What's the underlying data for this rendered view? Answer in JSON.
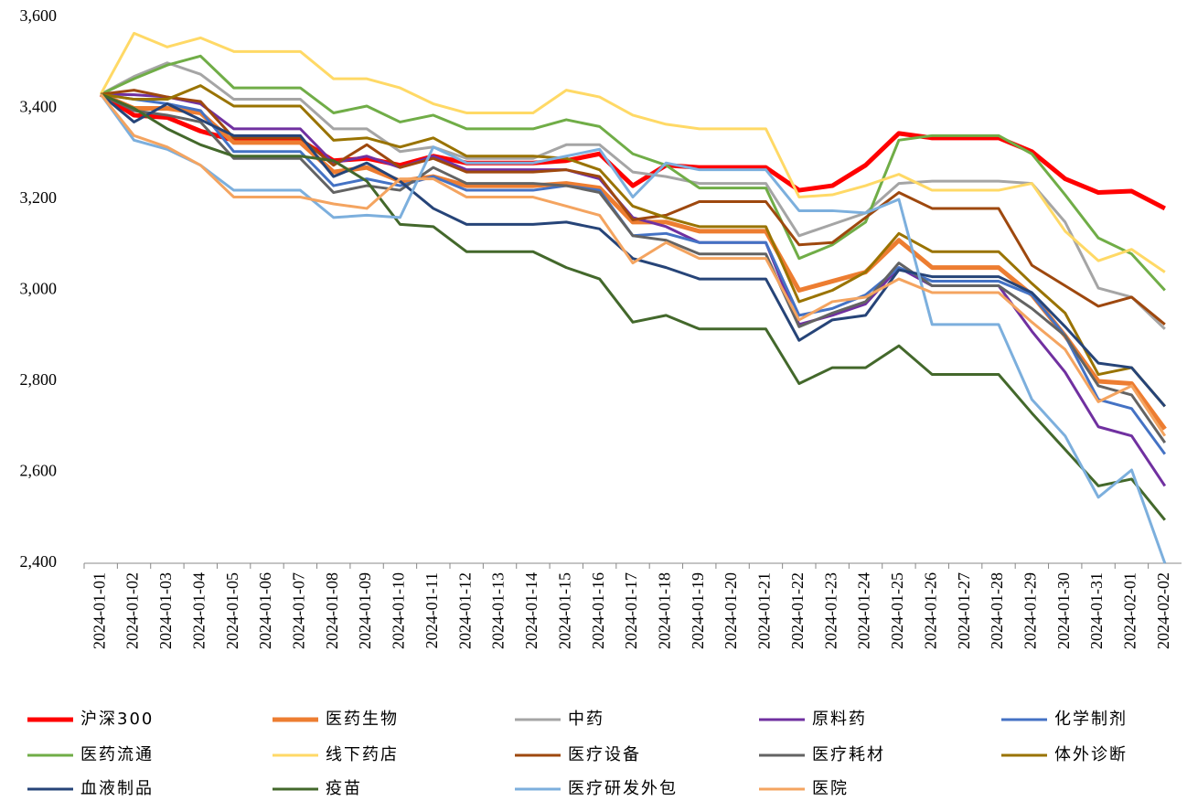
{
  "chart_data": {
    "type": "line",
    "categories": [
      "2024-01-01",
      "2024-01-02",
      "2024-01-03",
      "2024-01-04",
      "2024-01-05",
      "2024-01-06",
      "2024-01-07",
      "2024-01-08",
      "2024-01-09",
      "2024-01-10",
      "2024-01-11",
      "2024-01-12",
      "2024-01-13",
      "2024-01-14",
      "2024-01-15",
      "2024-01-16",
      "2024-01-17",
      "2024-01-18",
      "2024-01-19",
      "2024-01-20",
      "2024-01-21",
      "2024-01-22",
      "2024-01-23",
      "2024-01-24",
      "2024-01-25",
      "2024-01-26",
      "2024-01-27",
      "2024-01-28",
      "2024-01-29",
      "2024-01-30",
      "2024-01-31",
      "2024-02-01",
      "2024-02-02"
    ],
    "ylim": [
      2400,
      3600
    ],
    "yticks": [
      {
        "value": 2400,
        "label": "2,400"
      },
      {
        "value": 2600,
        "label": "2,600"
      },
      {
        "value": 2800,
        "label": "2,800"
      },
      {
        "value": 3000,
        "label": "3,000"
      },
      {
        "value": 3200,
        "label": "3,200"
      },
      {
        "value": 3400,
        "label": "3,400"
      },
      {
        "value": 3600,
        "label": "3,600"
      }
    ],
    "grid": false,
    "legend": "bottom",
    "series": [
      {
        "name": "沪深300",
        "color": "#ff0000",
        "values": [
          3431,
          3385,
          3380,
          3350,
          3330,
          3330,
          3330,
          3285,
          3290,
          3275,
          3295,
          3280,
          3280,
          3280,
          3285,
          3300,
          3230,
          3275,
          3270,
          3270,
          3270,
          3220,
          3230,
          3275,
          3345,
          3335,
          3335,
          3335,
          3305,
          3245,
          3215,
          3218,
          3180
        ]
      },
      {
        "name": "医药生物",
        "color": "#ed7d31",
        "values": [
          3431,
          3400,
          3400,
          3390,
          3325,
          3325,
          3325,
          3260,
          3270,
          3240,
          3250,
          3230,
          3230,
          3230,
          3235,
          3225,
          3150,
          3150,
          3130,
          3130,
          3130,
          3000,
          3020,
          3040,
          3110,
          3050,
          3050,
          3050,
          2990,
          2900,
          2800,
          2795,
          2695
        ]
      },
      {
        "name": "中药",
        "color": "#a5a5a5",
        "values": [
          3431,
          3470,
          3500,
          3475,
          3420,
          3420,
          3420,
          3355,
          3355,
          3305,
          3315,
          3290,
          3290,
          3290,
          3320,
          3320,
          3260,
          3250,
          3235,
          3235,
          3235,
          3120,
          3145,
          3170,
          3235,
          3240,
          3240,
          3240,
          3235,
          3150,
          3005,
          2985,
          2915
        ]
      },
      {
        "name": "原料药",
        "color": "#7030a0",
        "values": [
          3431,
          3430,
          3425,
          3410,
          3355,
          3355,
          3355,
          3280,
          3295,
          3270,
          3295,
          3265,
          3265,
          3265,
          3265,
          3245,
          3160,
          3140,
          3105,
          3105,
          3105,
          2925,
          2945,
          2970,
          3050,
          3010,
          3010,
          3010,
          2910,
          2820,
          2700,
          2680,
          2570
        ]
      },
      {
        "name": "化学制剂",
        "color": "#4472c4",
        "values": [
          3431,
          3420,
          3410,
          3395,
          3305,
          3305,
          3305,
          3230,
          3245,
          3230,
          3250,
          3220,
          3220,
          3220,
          3230,
          3220,
          3120,
          3125,
          3105,
          3105,
          3105,
          2945,
          2960,
          2990,
          3050,
          3020,
          3020,
          3020,
          2990,
          2900,
          2760,
          2740,
          2640
        ]
      },
      {
        "name": "医药流通",
        "color": "#70ad47",
        "values": [
          3431,
          3465,
          3495,
          3515,
          3445,
          3445,
          3445,
          3390,
          3405,
          3370,
          3385,
          3355,
          3355,
          3355,
          3375,
          3360,
          3300,
          3275,
          3225,
          3225,
          3225,
          3070,
          3100,
          3150,
          3330,
          3340,
          3340,
          3340,
          3300,
          3210,
          3115,
          3080,
          3000
        ]
      },
      {
        "name": "线下药店",
        "color": "#ffd966",
        "values": [
          3431,
          3565,
          3535,
          3555,
          3525,
          3525,
          3525,
          3465,
          3465,
          3445,
          3410,
          3390,
          3390,
          3390,
          3440,
          3425,
          3385,
          3365,
          3355,
          3355,
          3355,
          3205,
          3210,
          3230,
          3255,
          3220,
          3220,
          3220,
          3235,
          3130,
          3065,
          3090,
          3040
        ]
      },
      {
        "name": "医疗设备",
        "color": "#9e480e",
        "values": [
          3431,
          3440,
          3425,
          3415,
          3335,
          3335,
          3335,
          3275,
          3320,
          3270,
          3290,
          3260,
          3260,
          3260,
          3265,
          3250,
          3155,
          3165,
          3195,
          3195,
          3195,
          3100,
          3105,
          3160,
          3215,
          3180,
          3180,
          3180,
          3055,
          3010,
          2965,
          2985,
          2925
        ]
      },
      {
        "name": "医疗耗材",
        "color": "#636363",
        "values": [
          3431,
          3395,
          3385,
          3370,
          3290,
          3290,
          3290,
          3215,
          3230,
          3220,
          3270,
          3235,
          3235,
          3235,
          3230,
          3215,
          3120,
          3110,
          3080,
          3080,
          3080,
          2920,
          2950,
          2975,
          3060,
          3010,
          3010,
          3010,
          2960,
          2900,
          2790,
          2770,
          2665
        ]
      },
      {
        "name": "体外诊断",
        "color": "#997300",
        "values": [
          3431,
          3420,
          3420,
          3450,
          3405,
          3405,
          3405,
          3330,
          3335,
          3315,
          3335,
          3295,
          3295,
          3295,
          3290,
          3265,
          3185,
          3160,
          3140,
          3140,
          3140,
          2975,
          3000,
          3040,
          3125,
          3085,
          3085,
          3085,
          3015,
          2950,
          2815,
          2830,
          2745
        ]
      },
      {
        "name": "血液制品",
        "color": "#264478",
        "values": [
          3431,
          3370,
          3410,
          3375,
          3340,
          3340,
          3340,
          3250,
          3280,
          3240,
          3180,
          3145,
          3145,
          3145,
          3150,
          3135,
          3070,
          3050,
          3025,
          3025,
          3025,
          2890,
          2935,
          2945,
          3045,
          3030,
          3030,
          3030,
          2995,
          2920,
          2840,
          2830,
          2745
        ]
      },
      {
        "name": "疫苗",
        "color": "#43682b",
        "values": [
          3431,
          3400,
          3355,
          3320,
          3295,
          3295,
          3295,
          3285,
          3240,
          3145,
          3140,
          3085,
          3085,
          3085,
          3050,
          3025,
          2930,
          2945,
          2915,
          2915,
          2915,
          2795,
          2830,
          2830,
          2878,
          2815,
          2815,
          2815,
          2730,
          2650,
          2570,
          2585,
          2495
        ]
      },
      {
        "name": "医疗研发外包",
        "color": "#7cafdd",
        "values": [
          3431,
          3330,
          3310,
          3275,
          3220,
          3220,
          3220,
          3160,
          3165,
          3160,
          3315,
          3280,
          3280,
          3280,
          3295,
          3310,
          3205,
          3280,
          3265,
          3265,
          3265,
          3175,
          3175,
          3170,
          3200,
          2925,
          2925,
          2925,
          2760,
          2680,
          2545,
          2605,
          2400
        ]
      },
      {
        "name": "医院",
        "color": "#f4a460",
        "values": [
          3431,
          3340,
          3315,
          3275,
          3205,
          3205,
          3205,
          3190,
          3180,
          3245,
          3245,
          3205,
          3205,
          3205,
          3185,
          3165,
          3060,
          3105,
          3070,
          3070,
          3070,
          2935,
          2975,
          2985,
          3025,
          2995,
          2995,
          2995,
          2930,
          2870,
          2755,
          2790,
          2680
        ]
      }
    ]
  }
}
